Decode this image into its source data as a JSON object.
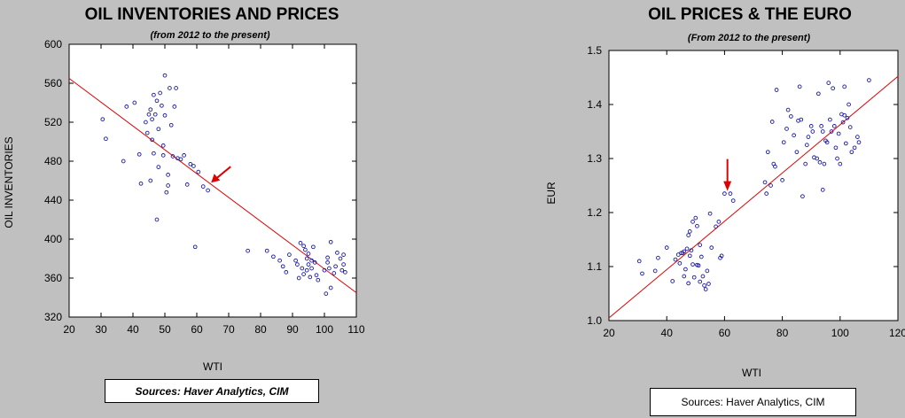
{
  "chart_data": [
    {
      "type": "scatter",
      "title": "OIL INVENTORIES AND PRICES",
      "subtitle": "(from 2012 to the present)",
      "xlabel": "WTI",
      "ylabel": "OIL INVENTORIES",
      "xlim": [
        20,
        110
      ],
      "ylim": [
        320,
        600
      ],
      "xticks": [
        20,
        30,
        40,
        50,
        60,
        70,
        80,
        90,
        100,
        110
      ],
      "yticks": [
        320,
        360,
        400,
        440,
        480,
        520,
        560,
        600
      ],
      "grid": false,
      "fit_line": {
        "x": [
          20,
          110
        ],
        "y": [
          565,
          345
        ]
      },
      "annotation": {
        "type": "arrow",
        "points_to": {
          "x": 64.5,
          "y": 458
        }
      },
      "source": "Sources:  Haver Analytics, CIM",
      "points": [
        [
          30.5,
          523
        ],
        [
          31.5,
          503
        ],
        [
          37,
          480
        ],
        [
          38,
          536
        ],
        [
          40.5,
          540
        ],
        [
          42,
          487
        ],
        [
          42.5,
          457
        ],
        [
          44,
          520
        ],
        [
          44.5,
          509
        ],
        [
          45,
          528
        ],
        [
          45.5,
          533
        ],
        [
          45.5,
          460
        ],
        [
          46,
          523
        ],
        [
          46,
          502
        ],
        [
          46.5,
          548
        ],
        [
          46.5,
          488
        ],
        [
          47,
          528
        ],
        [
          47.5,
          542
        ],
        [
          47.5,
          420
        ],
        [
          48,
          513
        ],
        [
          48,
          474
        ],
        [
          48.5,
          550
        ],
        [
          49,
          537
        ],
        [
          49.5,
          486
        ],
        [
          49.5,
          496
        ],
        [
          50,
          568
        ],
        [
          50,
          527
        ],
        [
          50.5,
          448
        ],
        [
          51,
          466
        ],
        [
          51,
          455
        ],
        [
          51.5,
          555
        ],
        [
          52,
          517
        ],
        [
          52.5,
          485
        ],
        [
          53,
          536
        ],
        [
          53.5,
          555
        ],
        [
          54,
          483
        ],
        [
          55,
          482
        ],
        [
          56,
          486
        ],
        [
          57,
          456
        ],
        [
          58,
          477
        ],
        [
          59,
          475
        ],
        [
          59.5,
          392
        ],
        [
          60.5,
          469
        ],
        [
          62,
          454
        ],
        [
          63.5,
          450
        ],
        [
          76,
          388
        ],
        [
          82,
          388
        ],
        [
          84,
          382
        ],
        [
          86,
          378
        ],
        [
          87,
          372
        ],
        [
          88,
          366
        ],
        [
          89,
          384
        ],
        [
          91,
          378
        ],
        [
          91.5,
          374
        ],
        [
          92,
          360
        ],
        [
          92.5,
          396
        ],
        [
          93,
          370
        ],
        [
          93.5,
          393
        ],
        [
          93.5,
          364
        ],
        [
          94,
          389
        ],
        [
          94.5,
          368
        ],
        [
          94.5,
          380
        ],
        [
          95,
          385
        ],
        [
          95,
          374
        ],
        [
          95.5,
          361
        ],
        [
          96,
          378
        ],
        [
          96,
          370
        ],
        [
          96.5,
          392
        ],
        [
          97,
          376
        ],
        [
          97.5,
          363
        ],
        [
          98,
          358
        ],
        [
          100,
          368
        ],
        [
          100.5,
          344
        ],
        [
          101,
          381
        ],
        [
          101,
          376
        ],
        [
          101.5,
          370
        ],
        [
          102,
          397
        ],
        [
          102,
          350
        ],
        [
          103,
          365
        ],
        [
          103.5,
          372
        ],
        [
          104,
          386
        ],
        [
          105,
          380
        ],
        [
          105.5,
          368
        ],
        [
          106,
          384
        ],
        [
          106,
          374
        ],
        [
          106.5,
          366
        ]
      ]
    },
    {
      "type": "scatter",
      "title": "OIL PRICES & THE EURO",
      "subtitle": "(From 2012 to the present)",
      "xlabel": "WTI",
      "ylabel": "EUR",
      "xlim": [
        20,
        120
      ],
      "ylim": [
        1.0,
        1.5
      ],
      "xticks": [
        20,
        40,
        60,
        80,
        100,
        120
      ],
      "yticks": [
        1.0,
        1.1,
        1.2,
        1.3,
        1.4,
        1.5
      ],
      "grid": false,
      "fit_line": {
        "x": [
          20,
          120
        ],
        "y": [
          1.005,
          1.452
        ]
      },
      "annotation": {
        "type": "arrow",
        "points_to": {
          "x": 61,
          "y": 1.24
        }
      },
      "source": "Sources: Haver Analytics, CIM",
      "points": [
        [
          30.5,
          1.11
        ],
        [
          31.5,
          1.087
        ],
        [
          36,
          1.092
        ],
        [
          37,
          1.116
        ],
        [
          40,
          1.135
        ],
        [
          42,
          1.073
        ],
        [
          43,
          1.113
        ],
        [
          44,
          1.122
        ],
        [
          44.5,
          1.106
        ],
        [
          45,
          1.125
        ],
        [
          45.5,
          1.125
        ],
        [
          46,
          1.128
        ],
        [
          46,
          1.082
        ],
        [
          46.5,
          1.095
        ],
        [
          47,
          1.133
        ],
        [
          47.5,
          1.158
        ],
        [
          47.5,
          1.069
        ],
        [
          48,
          1.165
        ],
        [
          48,
          1.12
        ],
        [
          48.5,
          1.13
        ],
        [
          49,
          1.183
        ],
        [
          49,
          1.104
        ],
        [
          49.5,
          1.08
        ],
        [
          50,
          1.19
        ],
        [
          50.5,
          1.175
        ],
        [
          50.5,
          1.103
        ],
        [
          51,
          1.102
        ],
        [
          51.5,
          1.14
        ],
        [
          51.5,
          1.072
        ],
        [
          52,
          1.118
        ],
        [
          52.5,
          1.082
        ],
        [
          53,
          1.065
        ],
        [
          53.5,
          1.058
        ],
        [
          54,
          1.092
        ],
        [
          54.5,
          1.068
        ],
        [
          55,
          1.198
        ],
        [
          55.5,
          1.135
        ],
        [
          57,
          1.174
        ],
        [
          58,
          1.183
        ],
        [
          58.5,
          1.116
        ],
        [
          59,
          1.12
        ],
        [
          60,
          1.235
        ],
        [
          62,
          1.235
        ],
        [
          63,
          1.222
        ],
        [
          74,
          1.256
        ],
        [
          74.5,
          1.235
        ],
        [
          75,
          1.312
        ],
        [
          76,
          1.25
        ],
        [
          76.5,
          1.368
        ],
        [
          77,
          1.29
        ],
        [
          77.5,
          1.285
        ],
        [
          78,
          1.427
        ],
        [
          80,
          1.26
        ],
        [
          80.5,
          1.33
        ],
        [
          81.5,
          1.355
        ],
        [
          82,
          1.39
        ],
        [
          83,
          1.378
        ],
        [
          84,
          1.343
        ],
        [
          85,
          1.312
        ],
        [
          85.5,
          1.37
        ],
        [
          86,
          1.433
        ],
        [
          86.5,
          1.372
        ],
        [
          87,
          1.23
        ],
        [
          88,
          1.29
        ],
        [
          88.5,
          1.325
        ],
        [
          89,
          1.34
        ],
        [
          90,
          1.36
        ],
        [
          90.5,
          1.35
        ],
        [
          91,
          1.302
        ],
        [
          92,
          1.3
        ],
        [
          92.5,
          1.42
        ],
        [
          93,
          1.293
        ],
        [
          93.5,
          1.36
        ],
        [
          94,
          1.35
        ],
        [
          94,
          1.242
        ],
        [
          94.5,
          1.29
        ],
        [
          95,
          1.333
        ],
        [
          95.5,
          1.33
        ],
        [
          96,
          1.44
        ],
        [
          96.5,
          1.372
        ],
        [
          97,
          1.35
        ],
        [
          97.5,
          1.43
        ],
        [
          98,
          1.36
        ],
        [
          98.5,
          1.32
        ],
        [
          99,
          1.3
        ],
        [
          99.5,
          1.346
        ],
        [
          100,
          1.29
        ],
        [
          100.5,
          1.382
        ],
        [
          101,
          1.367
        ],
        [
          101.5,
          1.433
        ],
        [
          101.5,
          1.38
        ],
        [
          102,
          1.328
        ],
        [
          102.5,
          1.375
        ],
        [
          103,
          1.4
        ],
        [
          103.5,
          1.358
        ],
        [
          104,
          1.312
        ],
        [
          105,
          1.32
        ],
        [
          106,
          1.34
        ],
        [
          106.5,
          1.33
        ],
        [
          110,
          1.445
        ]
      ]
    }
  ]
}
